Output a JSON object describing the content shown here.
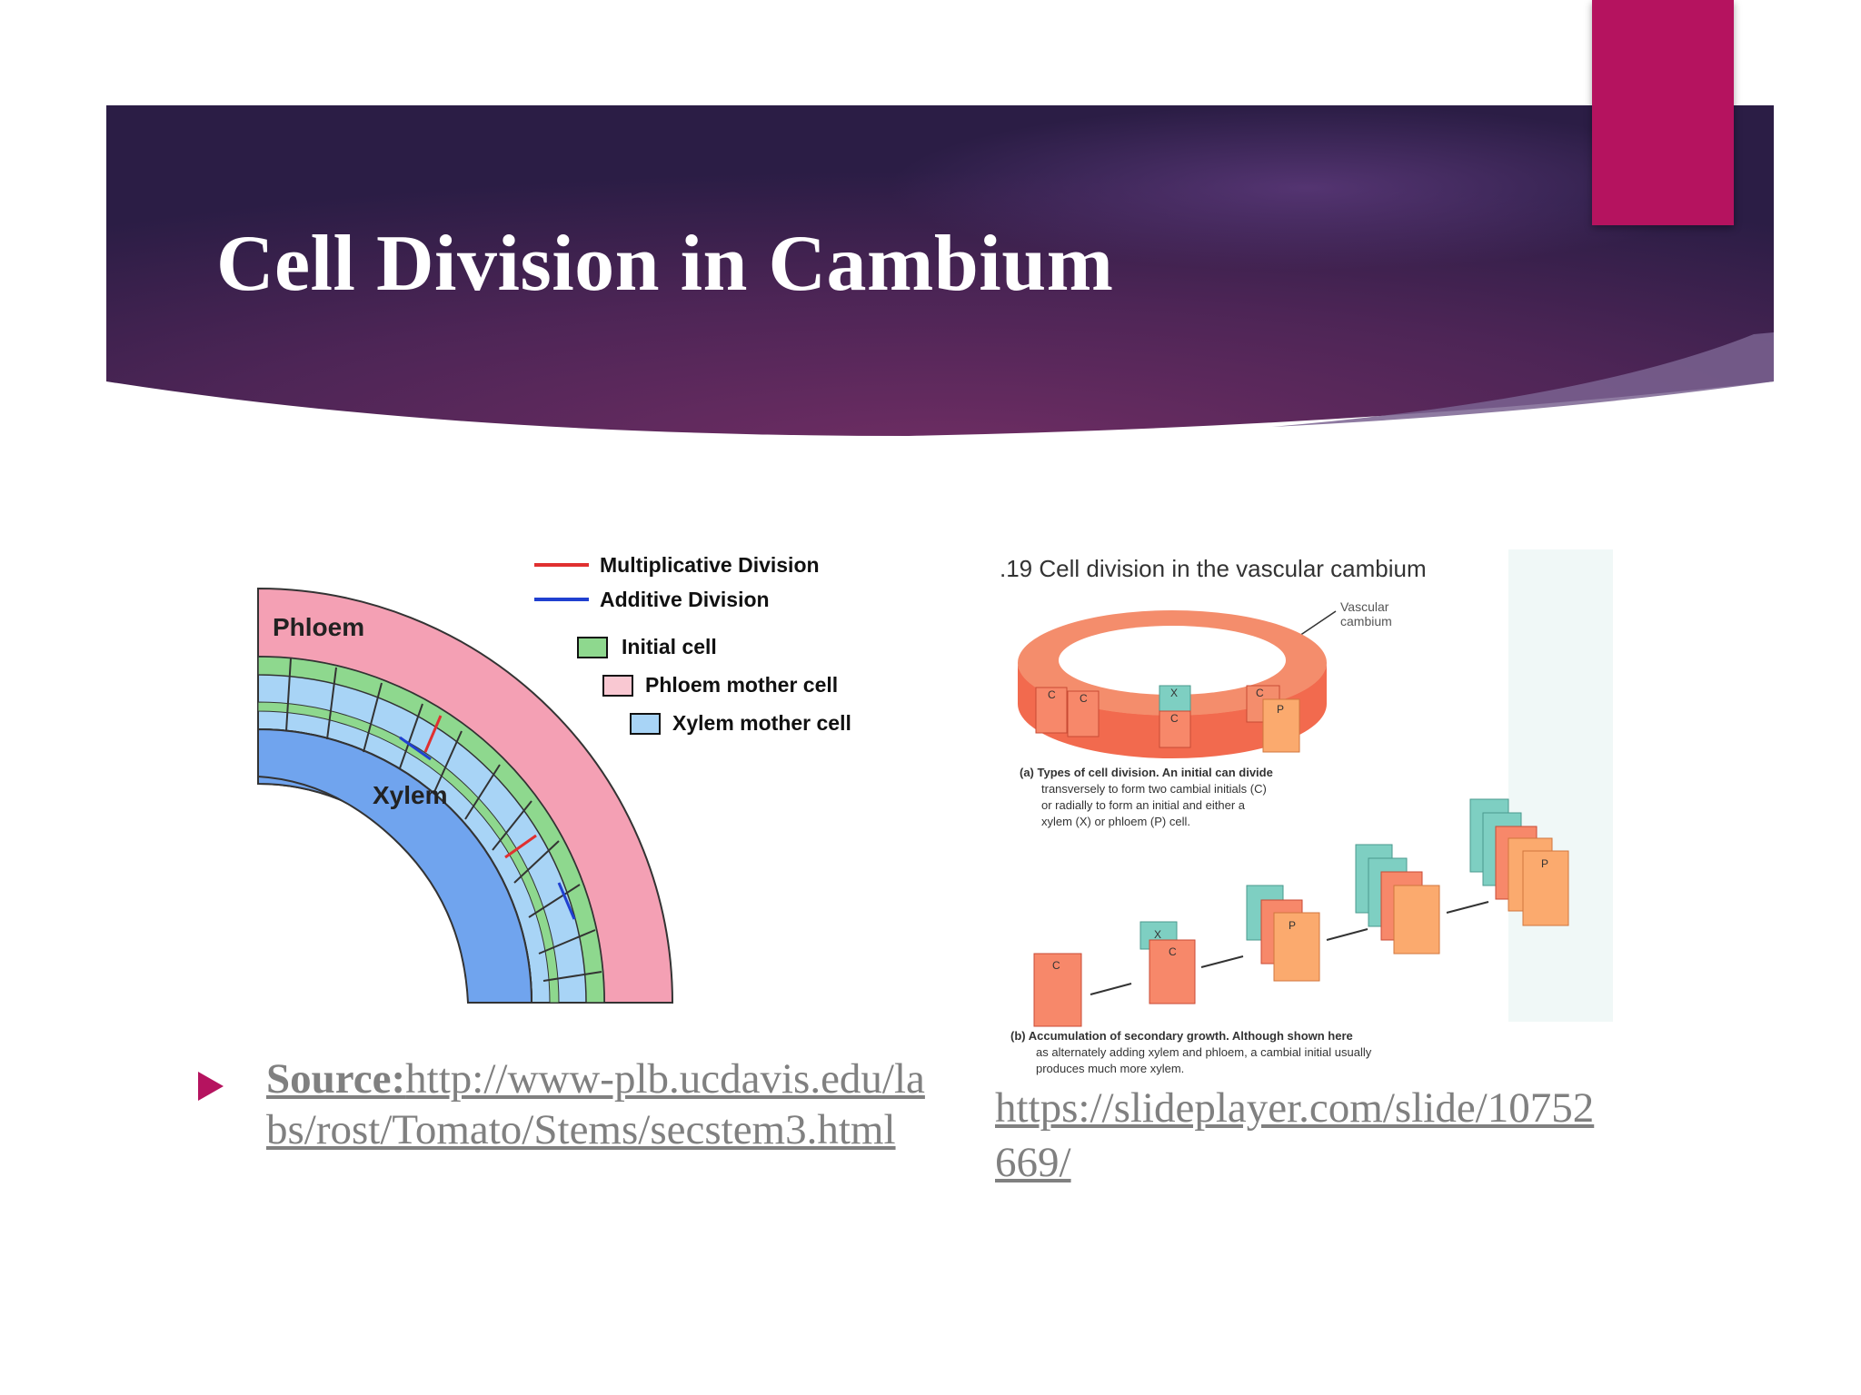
{
  "slide": {
    "title": "Cell Division in Cambium"
  },
  "left_figure": {
    "legend": {
      "multiplicative": "Multiplicative Division",
      "additive": "Additive Division",
      "initial": "Initial cell",
      "phloem_mother": "Phloem mother cell",
      "xylem_mother": "Xylem mother cell"
    },
    "labels": {
      "phloem": "Phloem",
      "xylem": "Xylem"
    },
    "colors": {
      "phloem": "#f4a0b4",
      "xylem": "#70a4ee",
      "initial": "#8ed88e",
      "phloem_mother": "#f9c8d2",
      "xylem_mother": "#a8d4f6",
      "multiplicative": "#e03030",
      "additive": "#2040d0"
    }
  },
  "right_figure": {
    "title": ".19 Cell division in the vascular cambium",
    "callout": [
      "Vascular",
      "cambium"
    ],
    "caption_a_lines": [
      "(a) Types of cell division. An initial can divide",
      "transversely to form two cambial initials (C)",
      "or radially to form an initial and either a",
      "xylem (X) or phloem (P) cell."
    ],
    "caption_b_lines": [
      "(b) Accumulation of secondary growth. Although shown here",
      "as alternately adding xylem and phloem, a cambial initial usually",
      "produces much more xylem."
    ],
    "letters": {
      "c": "C",
      "x": "X",
      "p": "P"
    }
  },
  "sources": {
    "left_label": "Source:",
    "left_url": "http://www-plb.ucdavis.edu/labs/rost/Tomato/Stems/secstem3.html",
    "right_url": "https://slideplayer.com/slide/10752669/"
  }
}
